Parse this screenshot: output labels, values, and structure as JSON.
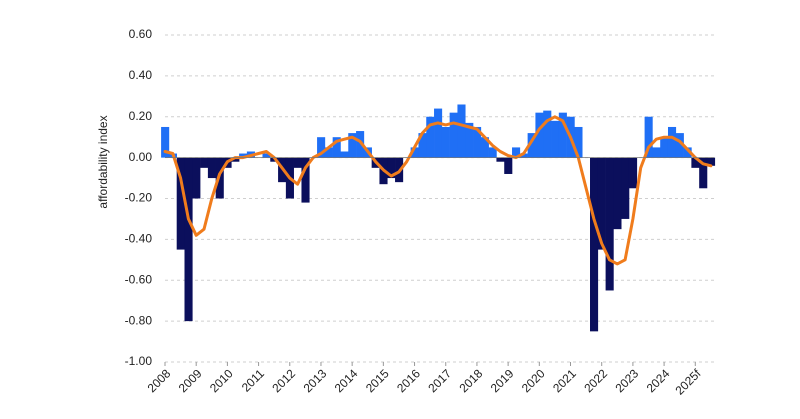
{
  "chart_data": {
    "type": "combo",
    "ylabel": "affordability index",
    "x": [
      2008,
      2008.25,
      2008.5,
      2008.75,
      2009,
      2009.25,
      2009.5,
      2009.75,
      2010,
      2010.25,
      2010.5,
      2010.75,
      2011,
      2011.25,
      2011.5,
      2011.75,
      2012,
      2012.25,
      2012.5,
      2012.75,
      2013,
      2013.25,
      2013.5,
      2013.75,
      2014,
      2014.25,
      2014.5,
      2014.75,
      2015,
      2015.25,
      2015.5,
      2015.75,
      2016,
      2016.25,
      2016.5,
      2016.75,
      2017,
      2017.25,
      2017.5,
      2017.75,
      2018,
      2018.25,
      2018.5,
      2018.75,
      2019,
      2019.25,
      2019.5,
      2019.75,
      2020,
      2020.25,
      2020.5,
      2020.75,
      2021,
      2021.25,
      2021.5,
      2021.75,
      2022,
      2022.25,
      2022.5,
      2022.75,
      2023,
      2023.25,
      2023.5,
      2023.75,
      2024,
      2024.25,
      2024.5,
      2024.75,
      2025,
      2025.25,
      2025.5
    ],
    "series": [
      {
        "type": "bar",
        "color": "#1f6ff5",
        "negative_color": "#0b0f5c",
        "values": [
          0.15,
          0.02,
          -0.45,
          -0.8,
          -0.2,
          -0.05,
          -0.1,
          -0.2,
          -0.05,
          -0.02,
          0.02,
          0.03,
          0.0,
          0.02,
          -0.02,
          -0.12,
          -0.2,
          -0.05,
          -0.22,
          0.0,
          0.1,
          0.05,
          0.1,
          0.03,
          0.12,
          0.13,
          0.05,
          -0.05,
          -0.13,
          -0.1,
          -0.12,
          0.0,
          0.05,
          0.12,
          0.2,
          0.24,
          0.15,
          0.22,
          0.26,
          0.17,
          0.15,
          0.1,
          0.05,
          -0.02,
          -0.08,
          0.05,
          0.02,
          0.12,
          0.22,
          0.23,
          0.18,
          0.22,
          0.2,
          0.15,
          0.0,
          -0.85,
          -0.45,
          -0.65,
          -0.35,
          -0.3,
          -0.15,
          0.0,
          0.2,
          0.05,
          0.1,
          0.15,
          0.12,
          0.05,
          -0.05,
          -0.15,
          -0.04
        ]
      },
      {
        "type": "line",
        "color": "#f07c1c",
        "values": [
          0.03,
          0.02,
          -0.1,
          -0.3,
          -0.38,
          -0.35,
          -0.2,
          -0.08,
          -0.02,
          0.0,
          0.0,
          0.01,
          0.02,
          0.03,
          0.0,
          -0.05,
          -0.1,
          -0.13,
          -0.05,
          0.0,
          0.02,
          0.05,
          0.08,
          0.09,
          0.1,
          0.08,
          0.03,
          -0.02,
          -0.06,
          -0.09,
          -0.07,
          -0.02,
          0.05,
          0.12,
          0.16,
          0.17,
          0.16,
          0.17,
          0.16,
          0.15,
          0.14,
          0.1,
          0.06,
          0.03,
          0.01,
          0.0,
          0.02,
          0.08,
          0.14,
          0.18,
          0.2,
          0.18,
          0.1,
          0.0,
          -0.15,
          -0.3,
          -0.42,
          -0.5,
          -0.52,
          -0.5,
          -0.3,
          -0.05,
          0.05,
          0.09,
          0.1,
          0.1,
          0.08,
          0.04,
          0.0,
          -0.03,
          -0.04
        ]
      }
    ],
    "xlim": [
      2008,
      2025.6
    ],
    "xticks": [
      2008,
      2009,
      2010,
      2011,
      2012,
      2013,
      2014,
      2015,
      2016,
      2017,
      2018,
      2019,
      2020,
      2021,
      2022,
      2023,
      2024,
      {
        "value": 2025,
        "label": "2025f"
      }
    ],
    "ylim": [
      -1.0,
      0.6
    ],
    "yticks": [
      {
        "value": -1.0,
        "label": "-1.00"
      },
      {
        "value": -0.8,
        "label": "-0.80"
      },
      {
        "value": -0.6,
        "label": "-0.60"
      },
      {
        "value": -0.4,
        "label": "-0.40"
      },
      {
        "value": -0.2,
        "label": "-0.20"
      },
      {
        "value": 0,
        "label": "0.00"
      },
      {
        "value": 0.2,
        "label": "0.20"
      },
      {
        "value": 0.4,
        "label": "0.40"
      },
      {
        "value": 0.6,
        "label": "0.60"
      }
    ],
    "grid": true
  }
}
